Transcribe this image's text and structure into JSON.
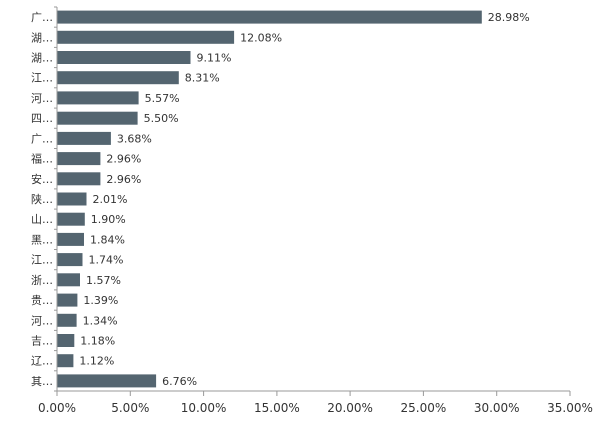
{
  "chart_data": {
    "type": "bar",
    "orientation": "horizontal",
    "categories": [
      "广…",
      "湖…",
      "湖…",
      "江…",
      "河…",
      "四…",
      "广…",
      "福…",
      "安…",
      "陕…",
      "山…",
      "黑…",
      "江…",
      "浙…",
      "贵…",
      "河…",
      "吉…",
      "辽…",
      "其…"
    ],
    "values": [
      28.98,
      12.08,
      9.11,
      8.31,
      5.57,
      5.5,
      3.68,
      2.96,
      2.96,
      2.01,
      1.9,
      1.84,
      1.74,
      1.57,
      1.39,
      1.34,
      1.18,
      1.12,
      6.76
    ],
    "value_labels": [
      "28.98%",
      "12.08%",
      "9.11%",
      "8.31%",
      "5.57%",
      "5.50%",
      "3.68%",
      "2.96%",
      "2.96%",
      "2.01%",
      "1.90%",
      "1.84%",
      "1.74%",
      "1.57%",
      "1.39%",
      "1.34%",
      "1.18%",
      "1.12%",
      "6.76%"
    ],
    "x_ticks": [
      "0.00%",
      "5.00%",
      "10.00%",
      "15.00%",
      "20.00%",
      "25.00%",
      "30.00%",
      "35.00%"
    ],
    "xlim": [
      0,
      35
    ],
    "title": "",
    "xlabel": "",
    "ylabel": "",
    "grid": false,
    "legend": "none",
    "bar_color": "#546570"
  }
}
